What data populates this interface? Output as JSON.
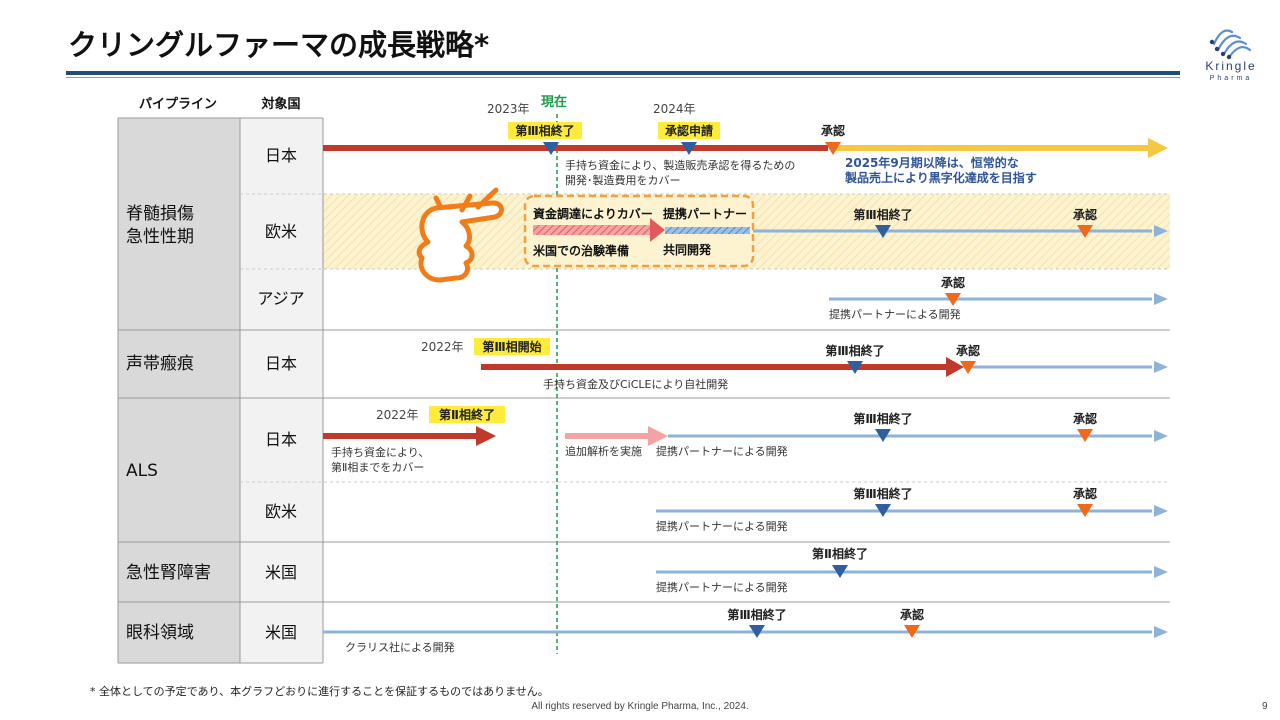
{
  "title": "クリングルファーマの成長戦略*",
  "logo": {
    "name": "Kringle",
    "sub": "Pharma",
    "icon": "helix-logo-icon"
  },
  "headers": {
    "pipeline": "パイプライン",
    "country": "対象国"
  },
  "timeline": {
    "year_2023": "2023年",
    "now": "現在",
    "year_2024": "2024年"
  },
  "rows": {
    "sci": {
      "category": [
        "脊髄損傷",
        "急性性期"
      ],
      "japan": {
        "country": "日本",
        "ms_phase3_end": "第Ⅲ相終了",
        "ms_application": "承認申請",
        "ms_approval": "承認",
        "note1": "手持ち資金により、製造販売承認を得るための",
        "note2": "開発･製造費用をカバー",
        "goal1": "2025年9月期以降は、恒常的な",
        "goal2": "製品売上により黒字化達成を目指す"
      },
      "west": {
        "country": "欧米",
        "box_funding": "資金調達によりカバー",
        "box_us_prep": "米国での治験準備",
        "box_partner": "提携パートナー",
        "box_joint": "共同開発",
        "ms_phase3_end": "第Ⅲ相終了",
        "ms_approval": "承認"
      },
      "asia": {
        "country": "アジア",
        "ms_approval": "承認",
        "note": "提携パートナーによる開発"
      }
    },
    "vocal": {
      "category": "声帯瘢痕",
      "country": "日本",
      "year": "2022年",
      "ms_phase3_start": "第Ⅲ相開始",
      "ms_phase3_end": "第Ⅲ相終了",
      "ms_approval": "承認",
      "note": "手持ち資金及びCiCLEにより自社開発"
    },
    "als": {
      "category": "ALS",
      "japan": {
        "country": "日本",
        "year": "2022年",
        "ms_phase2_end": "第Ⅱ相終了",
        "note1": "手持ち資金により、",
        "note2": "第Ⅱ相までをカバー",
        "note_extra": "追加解析を実施",
        "note_partner": "提携パートナーによる開発",
        "ms_phase3_end": "第Ⅲ相終了",
        "ms_approval": "承認"
      },
      "west": {
        "country": "欧米",
        "ms_phase3_end": "第Ⅲ相終了",
        "ms_approval": "承認",
        "note": "提携パートナーによる開発"
      }
    },
    "aki": {
      "category": "急性腎障害",
      "country": "米国",
      "ms_phase2_end": "第Ⅱ相終了",
      "note": "提携パートナーによる開発"
    },
    "eye": {
      "category": "眼科領域",
      "country": "米国",
      "ms_phase3_end": "第Ⅲ相終了",
      "ms_approval": "承認",
      "note": "クラリス社による開発"
    }
  },
  "footnote": "*  全体としての予定であり、本グラフどおりに進行することを保証するものではありません。",
  "copyright": "All rights reserved by Kringle Pharma, Inc., 2024.",
  "page_number": "9",
  "colors": {
    "red": "#c0392b",
    "yellow": "#f5c842",
    "blue": "#8db3d9",
    "marker_blue": "#2f5f9e",
    "marker_orange": "#ee6a1a",
    "now_line": "#1e9c4a",
    "highlight": "#ffeb3b",
    "hand": "#f07d1a"
  }
}
